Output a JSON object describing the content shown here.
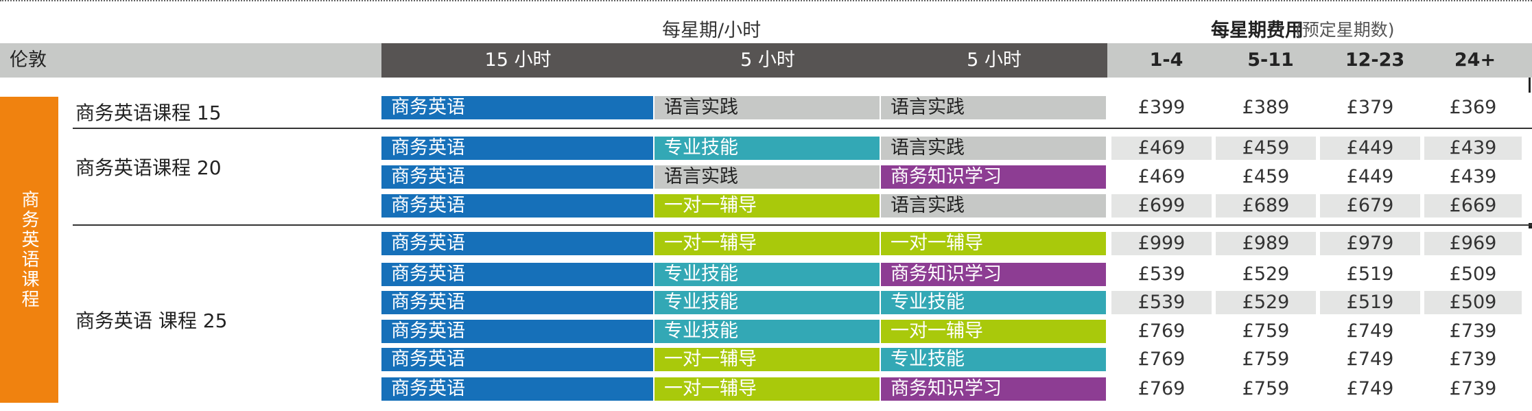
{
  "header": {
    "hours_title": "每星期/小时",
    "fee_title": "每星期费用",
    "fee_note": "(预定星期数)",
    "city": "伦敦",
    "hour_cols": [
      "15 小时",
      "5 小时",
      "5 小时"
    ],
    "week_cols": [
      "1-4",
      "5-11",
      "12-23",
      "24+"
    ]
  },
  "side_label": "商务英语课程",
  "groups": [
    {
      "name": "商务英语课程 15"
    },
    {
      "name": "商务英语课程 20"
    },
    {
      "name": "商务英语 课程 25"
    }
  ],
  "rows": [
    {
      "modules": [
        {
          "label": "商务英语",
          "color": "blue"
        },
        {
          "label": "语言实践",
          "color": "gray"
        },
        {
          "label": "语言实践",
          "color": "gray"
        }
      ],
      "prices": [
        "£399",
        "£389",
        "£379",
        "£369"
      ]
    },
    {
      "modules": [
        {
          "label": "商务英语",
          "color": "blue"
        },
        {
          "label": "专业技能",
          "color": "teal"
        },
        {
          "label": "语言实践",
          "color": "gray"
        }
      ],
      "prices": [
        "£469",
        "£459",
        "£449",
        "£439"
      ]
    },
    {
      "modules": [
        {
          "label": "商务英语",
          "color": "blue"
        },
        {
          "label": "语言实践",
          "color": "gray"
        },
        {
          "label": "商务知识学习",
          "color": "purple"
        }
      ],
      "prices": [
        "£469",
        "£459",
        "£449",
        "£439"
      ]
    },
    {
      "modules": [
        {
          "label": "商务英语",
          "color": "blue"
        },
        {
          "label": "一对一辅导",
          "color": "lime"
        },
        {
          "label": "语言实践",
          "color": "gray"
        }
      ],
      "prices": [
        "£699",
        "£689",
        "£679",
        "£669"
      ]
    },
    {
      "modules": [
        {
          "label": "商务英语",
          "color": "blue"
        },
        {
          "label": "一对一辅导",
          "color": "lime"
        },
        {
          "label": "一对一辅导",
          "color": "lime"
        }
      ],
      "prices": [
        "£999",
        "£989",
        "£979",
        "£969"
      ]
    },
    {
      "modules": [
        {
          "label": "商务英语",
          "color": "blue"
        },
        {
          "label": "专业技能",
          "color": "teal"
        },
        {
          "label": "商务知识学习",
          "color": "purple"
        }
      ],
      "prices": [
        "£539",
        "£529",
        "£519",
        "£509"
      ]
    },
    {
      "modules": [
        {
          "label": "商务英语",
          "color": "blue"
        },
        {
          "label": "专业技能",
          "color": "teal"
        },
        {
          "label": "专业技能",
          "color": "teal"
        }
      ],
      "prices": [
        "£539",
        "£529",
        "£519",
        "£509"
      ]
    },
    {
      "modules": [
        {
          "label": "商务英语",
          "color": "blue"
        },
        {
          "label": "专业技能",
          "color": "teal"
        },
        {
          "label": "一对一辅导",
          "color": "lime"
        }
      ],
      "prices": [
        "£769",
        "£759",
        "£749",
        "£739"
      ]
    },
    {
      "modules": [
        {
          "label": "商务英语",
          "color": "blue"
        },
        {
          "label": "一对一辅导",
          "color": "lime"
        },
        {
          "label": "专业技能",
          "color": "teal"
        }
      ],
      "prices": [
        "£769",
        "£759",
        "£749",
        "£739"
      ]
    },
    {
      "modules": [
        {
          "label": "商务英语",
          "color": "blue"
        },
        {
          "label": "一对一辅导",
          "color": "lime"
        },
        {
          "label": "商务知识学习",
          "color": "purple"
        }
      ],
      "prices": [
        "£769",
        "£759",
        "£749",
        "£739"
      ]
    }
  ]
}
